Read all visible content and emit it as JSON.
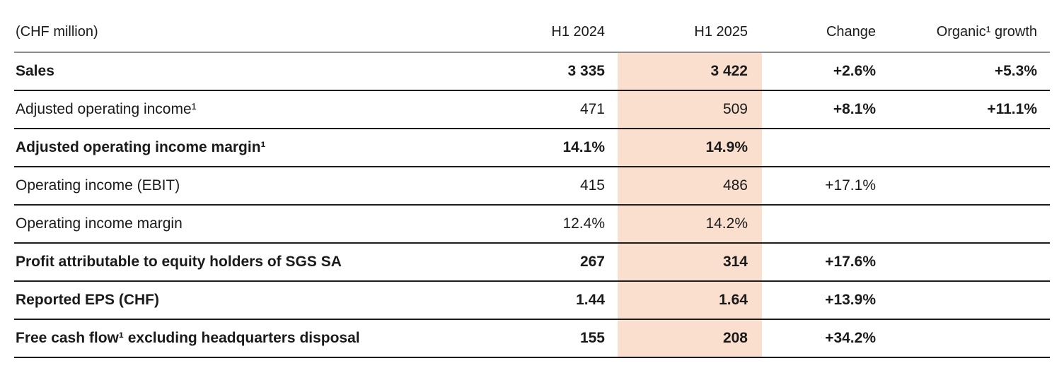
{
  "table": {
    "unit_label": "(CHF million)",
    "columns": {
      "h1_2024": "H1 2024",
      "h1_2025": "H1 2025",
      "change": "Change",
      "organic": "Organic¹ growth"
    },
    "colors": {
      "highlight_column": "#fadfce",
      "row_rule": "#1c1c1c",
      "header_rule": "#8d8d8d",
      "text": "#1a1a1a",
      "background": "#ffffff"
    },
    "rows": [
      {
        "label": "Sales",
        "label_bold": true,
        "cells": [
          {
            "text": "3 335",
            "bold": true
          },
          {
            "text": "3 422",
            "bold": true
          },
          {
            "text": "+2.6%",
            "bold": true
          },
          {
            "text": "+5.3%",
            "bold": true
          }
        ]
      },
      {
        "label": "Adjusted operating income¹",
        "label_bold": false,
        "cells": [
          {
            "text": "471",
            "bold": false
          },
          {
            "text": "509",
            "bold": false
          },
          {
            "text": "+8.1%",
            "bold": true
          },
          {
            "text": "+11.1%",
            "bold": true
          }
        ]
      },
      {
        "label": "Adjusted operating income margin¹",
        "label_bold": true,
        "cells": [
          {
            "text": "14.1%",
            "bold": true
          },
          {
            "text": "14.9%",
            "bold": true
          },
          {
            "text": "",
            "bold": false
          },
          {
            "text": "",
            "bold": false
          }
        ]
      },
      {
        "label": "Operating income (EBIT)",
        "label_bold": false,
        "cells": [
          {
            "text": "415",
            "bold": false
          },
          {
            "text": "486",
            "bold": false
          },
          {
            "text": "+17.1%",
            "bold": false
          },
          {
            "text": "",
            "bold": false
          }
        ]
      },
      {
        "label": "Operating income margin",
        "label_bold": false,
        "cells": [
          {
            "text": "12.4%",
            "bold": false
          },
          {
            "text": "14.2%",
            "bold": false
          },
          {
            "text": "",
            "bold": false
          },
          {
            "text": "",
            "bold": false
          }
        ]
      },
      {
        "label": "Profit attributable to equity holders of SGS SA",
        "label_bold": true,
        "cells": [
          {
            "text": "267",
            "bold": true
          },
          {
            "text": "314",
            "bold": true
          },
          {
            "text": "+17.6%",
            "bold": true
          },
          {
            "text": "",
            "bold": false
          }
        ]
      },
      {
        "label": "Reported EPS (CHF)",
        "label_bold": true,
        "cells": [
          {
            "text": "1.44",
            "bold": true
          },
          {
            "text": "1.64",
            "bold": true
          },
          {
            "text": "+13.9%",
            "bold": true
          },
          {
            "text": "",
            "bold": false
          }
        ]
      },
      {
        "label": "Free cash flow¹ excluding headquarters disposal",
        "label_bold": true,
        "cells": [
          {
            "text": "155",
            "bold": true
          },
          {
            "text": "208",
            "bold": true
          },
          {
            "text": "+34.2%",
            "bold": true
          },
          {
            "text": "",
            "bold": false
          }
        ]
      }
    ]
  }
}
